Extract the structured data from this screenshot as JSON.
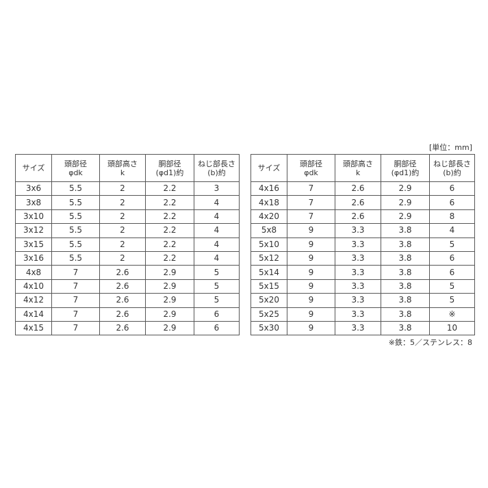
{
  "unit": "[単位：mm]",
  "tables": [
    {
      "header": [
        [
          "サイズ"
        ],
        [
          "頭部径",
          "φdk"
        ],
        [
          "頭部高さ",
          "k"
        ],
        [
          "胴部径",
          "(φd1)約"
        ],
        [
          "ねじ部長さ",
          "(b)約"
        ]
      ],
      "rows": [
        [
          "3x6",
          "5.5",
          "2",
          "2.2",
          "3"
        ],
        [
          "3x8",
          "5.5",
          "2",
          "2.2",
          "4"
        ],
        [
          "3x10",
          "5.5",
          "2",
          "2.2",
          "4"
        ],
        [
          "3x12",
          "5.5",
          "2",
          "2.2",
          "4"
        ],
        [
          "3x15",
          "5.5",
          "2",
          "2.2",
          "4"
        ],
        [
          "3x16",
          "5.5",
          "2",
          "2.2",
          "4"
        ],
        [
          "4x8",
          "7",
          "2.6",
          "2.9",
          "5"
        ],
        [
          "4x10",
          "7",
          "2.6",
          "2.9",
          "5"
        ],
        [
          "4x12",
          "7",
          "2.6",
          "2.9",
          "5"
        ],
        [
          "4x14",
          "7",
          "2.6",
          "2.9",
          "6"
        ],
        [
          "4x15",
          "7",
          "2.6",
          "2.9",
          "6"
        ]
      ]
    },
    {
      "header": [
        [
          "サイズ"
        ],
        [
          "頭部径",
          "φdk"
        ],
        [
          "頭部高さ",
          "k"
        ],
        [
          "胴部径",
          "(φd1)約"
        ],
        [
          "ねじ部長さ",
          "(b)約"
        ]
      ],
      "rows": [
        [
          "4x16",
          "7",
          "2.6",
          "2.9",
          "6"
        ],
        [
          "4x18",
          "7",
          "2.6",
          "2.9",
          "6"
        ],
        [
          "4x20",
          "7",
          "2.6",
          "2.9",
          "8"
        ],
        [
          "5x8",
          "9",
          "3.3",
          "3.8",
          "4"
        ],
        [
          "5x10",
          "9",
          "3.3",
          "3.8",
          "5"
        ],
        [
          "5x12",
          "9",
          "3.3",
          "3.8",
          "6"
        ],
        [
          "5x14",
          "9",
          "3.3",
          "3.8",
          "6"
        ],
        [
          "5x15",
          "9",
          "3.3",
          "3.8",
          "5"
        ],
        [
          "5x20",
          "9",
          "3.3",
          "3.8",
          "5"
        ],
        [
          "5x25",
          "9",
          "3.3",
          "3.8",
          "※"
        ],
        [
          "5x30",
          "9",
          "3.3",
          "3.8",
          "10"
        ]
      ]
    }
  ],
  "footnote": "※鉄：5／ステンレス：8"
}
